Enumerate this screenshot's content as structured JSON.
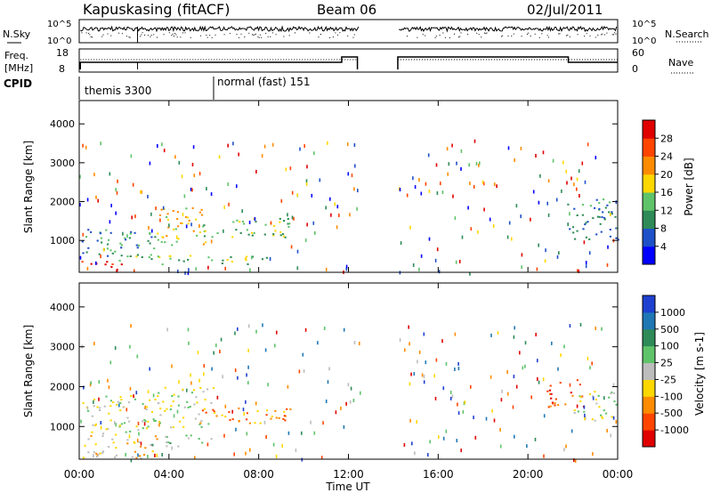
{
  "header": {
    "station": "Kapuskasing (fitACF)",
    "beam": "Beam 06",
    "date": "02/Jul/2011"
  },
  "noise_panel": {
    "left_label": "N.Sky",
    "right_label": "N.Search",
    "left_ticks": [
      "10^5",
      "10^0"
    ],
    "right_ticks": [
      "10^5",
      "10^0"
    ]
  },
  "freq_panel": {
    "left_label_line1": "Freq.",
    "left_label_line2": "[MHz]",
    "left_ticks": [
      "18",
      "8"
    ],
    "right_label": "Nave",
    "right_ticks": [
      "60",
      "0"
    ]
  },
  "cpid": {
    "label": "CPID",
    "segments": [
      {
        "text": "themis 3300",
        "start_hour": 0.0
      },
      {
        "text": "normal (fast) 151",
        "start_hour": 6.0
      }
    ]
  },
  "chart_data": [
    {
      "type": "heatmap",
      "name": "power",
      "ylabel": "Slant Range [km]",
      "yticks": [
        1000,
        2000,
        3000,
        4000
      ],
      "ylim": [
        180,
        4600
      ],
      "xlim": [
        0,
        24
      ],
      "colorbar_label": "Power [dB]",
      "colorbar_ticks": [
        "4",
        "8",
        "12",
        "16",
        "20",
        "24",
        "28"
      ],
      "colorbar_colors": [
        "#0000ff",
        "#1e50c8",
        "#2e8b57",
        "#5fc36a",
        "#ffd700",
        "#ff8c00",
        "#ff4500",
        "#e00000"
      ],
      "data_gap_hours": [
        12.5,
        14.2
      ],
      "echo_regions": [
        {
          "t0": 0.1,
          "t1": 2.0,
          "r0": 200,
          "r1": 500,
          "level": 7
        },
        {
          "t0": 0.1,
          "t1": 3.5,
          "r0": 500,
          "r1": 1300,
          "level": 2
        },
        {
          "t0": 3.4,
          "t1": 5.6,
          "r0": 900,
          "r1": 1900,
          "level": 4
        },
        {
          "t0": 5.0,
          "t1": 9.5,
          "r0": 1100,
          "r1": 1600,
          "level": 3
        },
        {
          "t0": 2.5,
          "t1": 8.5,
          "r0": 400,
          "r1": 650,
          "level": 3
        },
        {
          "t0": 21.7,
          "t1": 24.0,
          "r0": 1000,
          "r1": 2100,
          "level": 2
        }
      ]
    },
    {
      "type": "heatmap",
      "name": "velocity",
      "xlabel": "Time UT",
      "ylabel": "Slant Range [km]",
      "yticks": [
        1000,
        2000,
        3000,
        4000
      ],
      "ylim": [
        180,
        4600
      ],
      "xlim": [
        0,
        24
      ],
      "xticks": [
        "00:00",
        "04:00",
        "08:00",
        "12:00",
        "16:00",
        "20:00",
        "00:00"
      ],
      "colorbar_label": "Velocity [m s-1]",
      "colorbar_ticks": [
        "1000",
        "500",
        "100",
        "25",
        "-25",
        "-100",
        "-500",
        "-1000"
      ],
      "colorbar_colors": [
        "#1e40d0",
        "#1f77b4",
        "#2e8b57",
        "#5fc36a",
        "#bdbdbd",
        "#ffd700",
        "#ff8c00",
        "#ff4500",
        "#e00000"
      ],
      "data_gap_hours": [
        12.5,
        14.2
      ],
      "echo_regions": [
        {
          "t0": 0.1,
          "t1": 3.5,
          "r0": 200,
          "r1": 800,
          "level": 5
        },
        {
          "t0": 0.1,
          "t1": 3.5,
          "r0": 800,
          "r1": 1800,
          "level": 4
        },
        {
          "t0": 3.4,
          "t1": 6.0,
          "r0": 1000,
          "r1": 2000,
          "level": 4
        },
        {
          "t0": 4.5,
          "t1": 9.5,
          "r0": 1100,
          "r1": 1500,
          "level": 6
        },
        {
          "t0": 3.0,
          "t1": 6.0,
          "r0": 500,
          "r1": 800,
          "level": 3
        },
        {
          "t0": 20.8,
          "t1": 22.5,
          "r0": 1500,
          "r1": 2200,
          "level": 7
        },
        {
          "t0": 22.0,
          "t1": 24.0,
          "r0": 1100,
          "r1": 1900,
          "level": 4
        }
      ]
    }
  ]
}
